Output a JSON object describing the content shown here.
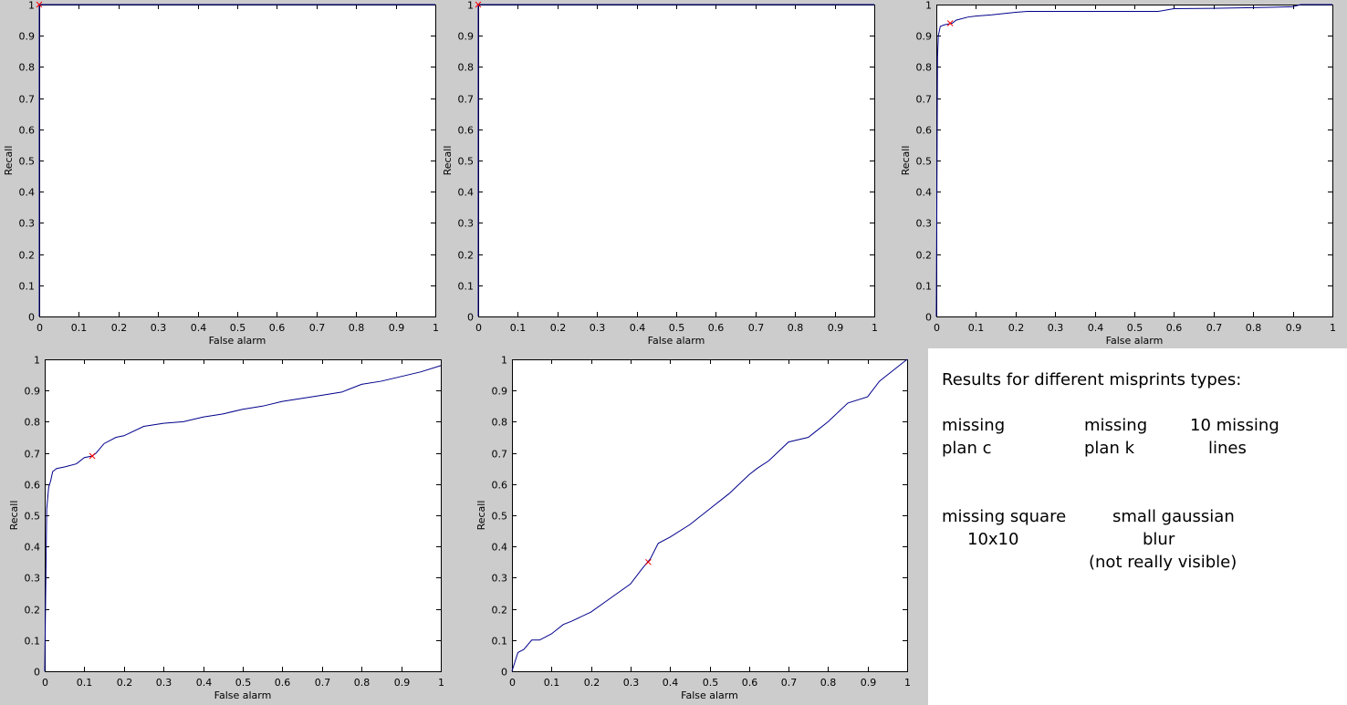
{
  "colors": {
    "panel_bg": "#cccccc",
    "curve": "#00008b",
    "marker": "#ff0000"
  },
  "chart_data": [
    {
      "type": "line",
      "xlabel": "False alarm",
      "ylabel": "Recall",
      "xlim": [
        0,
        1
      ],
      "ylim": [
        0,
        1
      ],
      "xticks": [
        "0",
        "0.1",
        "0.2",
        "0.3",
        "0.4",
        "0.5",
        "0.6",
        "0.7",
        "0.8",
        "0.9",
        "1"
      ],
      "yticks": [
        "0",
        "0.1",
        "0.2",
        "0.3",
        "0.4",
        "0.5",
        "0.6",
        "0.7",
        "0.8",
        "0.9",
        "1"
      ],
      "series": [
        {
          "x": [
            0,
            0,
            1
          ],
          "y": [
            0,
            1,
            1
          ]
        }
      ],
      "marker": {
        "x": 0.0,
        "y": 1.0
      }
    },
    {
      "type": "line",
      "xlabel": "False alarm",
      "ylabel": "Recall",
      "xlim": [
        0,
        1
      ],
      "ylim": [
        0,
        1
      ],
      "xticks": [
        "0",
        "0.1",
        "0.2",
        "0.3",
        "0.4",
        "0.5",
        "0.6",
        "0.7",
        "0.8",
        "0.9",
        "1"
      ],
      "yticks": [
        "0",
        "0.1",
        "0.2",
        "0.3",
        "0.4",
        "0.5",
        "0.6",
        "0.7",
        "0.8",
        "0.9",
        "1"
      ],
      "series": [
        {
          "x": [
            0,
            0,
            1
          ],
          "y": [
            0,
            1,
            1
          ]
        }
      ],
      "marker": {
        "x": 0.0,
        "y": 1.0
      }
    },
    {
      "type": "line",
      "xlabel": "False alarm",
      "ylabel": "Recall",
      "xlim": [
        0,
        1
      ],
      "ylim": [
        0,
        1
      ],
      "xticks": [
        "0",
        "0.1",
        "0.2",
        "0.3",
        "0.4",
        "0.5",
        "0.6",
        "0.7",
        "0.8",
        "0.9",
        "1"
      ],
      "yticks": [
        "0",
        "0.1",
        "0.2",
        "0.3",
        "0.4",
        "0.5",
        "0.6",
        "0.7",
        "0.8",
        "0.9",
        "1"
      ],
      "series": [
        {
          "x": [
            0,
            0.003,
            0.005,
            0.01,
            0.02,
            0.04,
            0.05,
            0.08,
            0.1,
            0.14,
            0.2,
            0.23,
            0.3,
            0.4,
            0.5,
            0.56,
            0.6,
            0.7,
            0.8,
            0.9,
            0.92,
            1
          ],
          "y": [
            0,
            0.83,
            0.9,
            0.93,
            0.935,
            0.94,
            0.95,
            0.96,
            0.963,
            0.967,
            0.975,
            0.978,
            0.978,
            0.978,
            0.978,
            0.978,
            0.987,
            0.988,
            0.99,
            0.993,
            1.0,
            1.0
          ]
        }
      ],
      "marker": {
        "x": 0.035,
        "y": 0.94
      }
    },
    {
      "type": "line",
      "xlabel": "False alarm",
      "ylabel": "Recall",
      "xlim": [
        0,
        1
      ],
      "ylim": [
        0,
        1
      ],
      "xticks": [
        "0",
        "0.1",
        "0.2",
        "0.3",
        "0.4",
        "0.5",
        "0.6",
        "0.7",
        "0.8",
        "0.9",
        "1"
      ],
      "yticks": [
        "0",
        "0.1",
        "0.2",
        "0.3",
        "0.4",
        "0.5",
        "0.6",
        "0.7",
        "0.8",
        "0.9",
        "1"
      ],
      "series": [
        {
          "x": [
            0,
            0.005,
            0.01,
            0.015,
            0.02,
            0.025,
            0.03,
            0.05,
            0.08,
            0.1,
            0.12,
            0.13,
            0.15,
            0.18,
            0.2,
            0.25,
            0.3,
            0.35,
            0.4,
            0.45,
            0.5,
            0.55,
            0.6,
            0.65,
            0.7,
            0.75,
            0.8,
            0.85,
            0.9,
            0.95,
            1.0
          ],
          "y": [
            0,
            0.52,
            0.59,
            0.61,
            0.64,
            0.645,
            0.65,
            0.655,
            0.665,
            0.685,
            0.69,
            0.7,
            0.73,
            0.75,
            0.755,
            0.785,
            0.795,
            0.8,
            0.815,
            0.825,
            0.84,
            0.85,
            0.865,
            0.875,
            0.885,
            0.895,
            0.92,
            0.93,
            0.945,
            0.96,
            0.98
          ]
        }
      ],
      "marker": {
        "x": 0.12,
        "y": 0.69
      }
    },
    {
      "type": "line",
      "xlabel": "False alarm",
      "ylabel": "Recall",
      "xlim": [
        0,
        1
      ],
      "ylim": [
        0,
        1
      ],
      "xticks": [
        "0",
        "0.1",
        "0.2",
        "0.3",
        "0.4",
        "0.5",
        "0.6",
        "0.7",
        "0.8",
        "0.9",
        "1"
      ],
      "yticks": [
        "0",
        "0.1",
        "0.2",
        "0.3",
        "0.4",
        "0.5",
        "0.6",
        "0.7",
        "0.8",
        "0.9",
        "1"
      ],
      "series": [
        {
          "x": [
            0,
            0.005,
            0.015,
            0.03,
            0.05,
            0.07,
            0.1,
            0.13,
            0.15,
            0.2,
            0.25,
            0.3,
            0.33,
            0.35,
            0.37,
            0.4,
            0.45,
            0.5,
            0.55,
            0.6,
            0.62,
            0.65,
            0.7,
            0.75,
            0.8,
            0.85,
            0.9,
            0.93,
            0.95,
            1.0
          ],
          "y": [
            0,
            0.02,
            0.06,
            0.07,
            0.1,
            0.1,
            0.12,
            0.15,
            0.16,
            0.19,
            0.235,
            0.28,
            0.33,
            0.36,
            0.41,
            0.43,
            0.47,
            0.52,
            0.57,
            0.63,
            0.65,
            0.675,
            0.735,
            0.75,
            0.8,
            0.86,
            0.88,
            0.93,
            0.95,
            1.0
          ]
        }
      ],
      "marker": {
        "x": 0.345,
        "y": 0.35
      }
    }
  ],
  "notes": {
    "title": "Results for different misprints types:",
    "lines": [
      "missing",
      "plan c",
      "missing",
      "plan k",
      "10 missing",
      "lines",
      "missing square",
      "10x10",
      "small gaussian",
      "blur",
      "(not really visible)"
    ]
  }
}
